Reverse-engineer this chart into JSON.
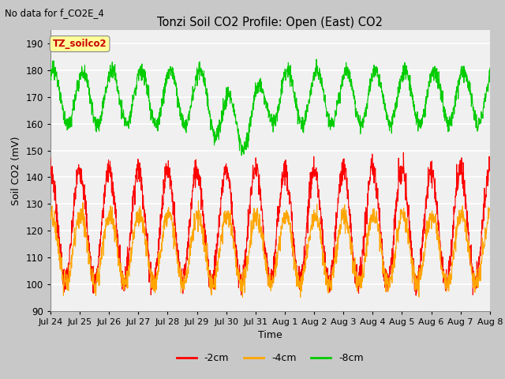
{
  "title": "Tonzi Soil CO2 Profile: Open (East) CO2",
  "suptitle": "No data for f_CO2E_4",
  "ylabel": "Soil CO2 (mV)",
  "xlabel": "Time",
  "ylim": [
    90,
    195
  ],
  "yticks": [
    90,
    100,
    110,
    120,
    130,
    140,
    150,
    160,
    170,
    180,
    190
  ],
  "xtick_labels": [
    "Jul 24",
    "Jul 25",
    "Jul 26",
    "Jul 27",
    "Jul 28",
    "Jul 29",
    "Jul 30",
    "Jul 31",
    "Aug 1",
    "Aug 2",
    "Aug 3",
    "Aug 4",
    "Aug 5",
    "Aug 6",
    "Aug 7",
    "Aug 8"
  ],
  "legend_label_2cm": "-2cm",
  "legend_label_4cm": "-4cm",
  "legend_label_8cm": "-8cm",
  "color_2cm": "#ff0000",
  "color_4cm": "#ffa500",
  "color_8cm": "#00cc00",
  "legend_box_label": "TZ_soilco2",
  "axes_facecolor": "#f0f0f0",
  "fig_facecolor": "#c8c8c8",
  "grid_color": "#ffffff",
  "n_points": 2000,
  "end_day": 15.0,
  "period_hours": 24
}
